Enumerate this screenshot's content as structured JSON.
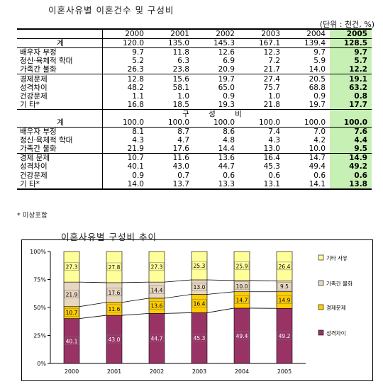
{
  "titles": {
    "table_title": "이혼사유별 이혼건수 및 구성비",
    "unit": "(단위 : 천건, %)",
    "chart_title": "이혼사유별 구성비 추이"
  },
  "table": {
    "years": [
      "2000",
      "2001",
      "2002",
      "2003",
      "2004",
      "2005"
    ],
    "count_rows": [
      {
        "label": "계",
        "values": [
          "120.0",
          "135.0",
          "145.3",
          "167.1",
          "139.4",
          "128.5"
        ]
      },
      {
        "label": "배우자 부정",
        "values": [
          "9.7",
          "11.8",
          "12.6",
          "12.3",
          "9.7",
          "9.7"
        ]
      },
      {
        "label": "정신·육체적 학대",
        "values": [
          "5.2",
          "6.3",
          "6.9",
          "7.2",
          "5.9",
          "5.7"
        ]
      },
      {
        "label": "가족간 불화",
        "values": [
          "26.3",
          "23.8",
          "20.9",
          "21.7",
          "14.0",
          "12.2"
        ]
      },
      {
        "label": "경제문제",
        "values": [
          "12.8",
          "15.6",
          "19.7",
          "27.4",
          "20.5",
          "19.1"
        ]
      },
      {
        "label": "성격차이",
        "values": [
          "48.2",
          "58.1",
          "65.0",
          "75.7",
          "68.8",
          "63.2"
        ]
      },
      {
        "label": "건강문제",
        "values": [
          "1.1",
          "1.0",
          "0.9",
          "1.0",
          "0.9",
          "0.8"
        ]
      },
      {
        "label": "기  타*",
        "values": [
          "16.8",
          "18.5",
          "19.3",
          "21.8",
          "19.7",
          "17.7"
        ]
      }
    ],
    "section_label": "구  성  비",
    "pct_rows": [
      {
        "label": "계",
        "values": [
          "100.0",
          "100.0",
          "100.0",
          "100.0",
          "100.0",
          "100.0"
        ]
      },
      {
        "label": "배우자 부정",
        "values": [
          "8.1",
          "8.7",
          "8.6",
          "7.4",
          "7.0",
          "7.6"
        ]
      },
      {
        "label": "정신·육체적 학대",
        "values": [
          "4.3",
          "4.7",
          "4.8",
          "4.3",
          "4.2",
          "4.4"
        ]
      },
      {
        "label": "가족간 불화",
        "values": [
          "21.9",
          "17.6",
          "14.4",
          "13.0",
          "10.0",
          "9.5"
        ]
      },
      {
        "label": "경제 문제",
        "values": [
          "10.7",
          "11.6",
          "13.6",
          "16.4",
          "14.7",
          "14.9"
        ]
      },
      {
        "label": "성격차이",
        "values": [
          "40.1",
          "43.0",
          "44.7",
          "45.3",
          "49.4",
          "49.2"
        ]
      },
      {
        "label": "건강문제",
        "values": [
          "0.9",
          "0.7",
          "0.6",
          "0.6",
          "0.6",
          "0.6"
        ]
      },
      {
        "label": "기  타*",
        "values": [
          "14.0",
          "13.7",
          "13.3",
          "13.1",
          "14.1",
          "13.8"
        ]
      }
    ],
    "footnote": "* 미상포함"
  },
  "chart_data": {
    "type": "bar",
    "stacked": true,
    "categories": [
      "2000",
      "2001",
      "2002",
      "2003",
      "2004",
      "2005"
    ],
    "series": [
      {
        "name": "성격차이",
        "values": [
          40.1,
          43.0,
          44.7,
          45.3,
          49.4,
          49.2
        ],
        "color": "#993366"
      },
      {
        "name": "경제문제",
        "values": [
          10.7,
          11.6,
          13.6,
          16.4,
          14.7,
          14.9
        ],
        "color": "#ffcc00"
      },
      {
        "name": "가족간 불화",
        "values": [
          21.9,
          17.6,
          14.4,
          13.0,
          10.0,
          9.5
        ],
        "color": "#e8d7c0"
      },
      {
        "name": "기타 사유",
        "values": [
          27.3,
          27.8,
          27.3,
          25.3,
          25.9,
          26.4
        ],
        "color": "#ffff99"
      }
    ],
    "yticks": [
      "0%",
      "25%",
      "50%",
      "75%",
      "100%"
    ],
    "ylim": [
      0,
      100
    ],
    "legend_position": "right",
    "grid": false,
    "connector_lines": true
  }
}
